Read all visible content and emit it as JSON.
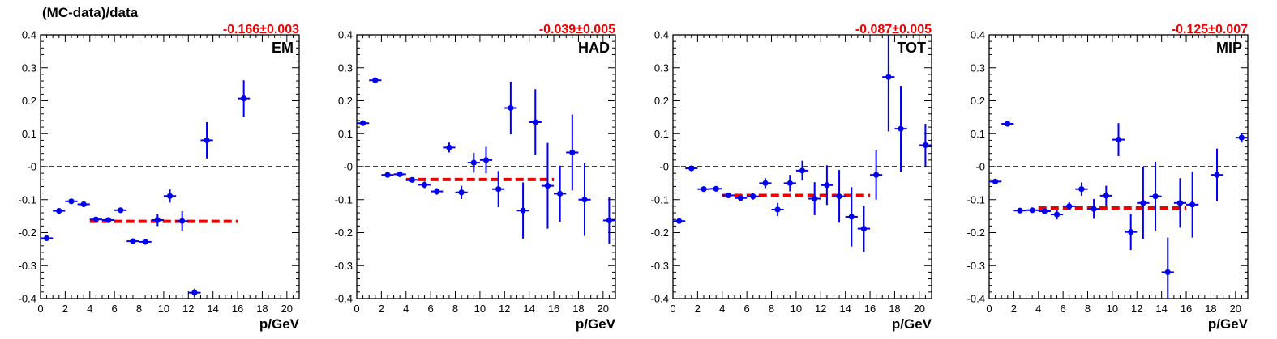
{
  "figure": {
    "ylabel": "(MC-data)/data"
  },
  "colors": {
    "points": "#0000ee",
    "fit": "#ee0000",
    "zero_line": "#000000",
    "frame": "#000000"
  },
  "chart_data": [
    {
      "type": "scatter",
      "label": "EM",
      "fit_text": "-0.166±0.003",
      "fit": {
        "value": -0.166,
        "x_range": [
          4,
          16
        ]
      },
      "xlabel": "p/GeV",
      "ylabel": "(MC-data)/data",
      "xlim": [
        0,
        21
      ],
      "ylim": [
        -0.4,
        0.4
      ],
      "xticks": [
        0,
        2,
        4,
        6,
        8,
        10,
        12,
        14,
        16,
        18,
        20
      ],
      "yticks": [
        -0.4,
        -0.3,
        -0.2,
        -0.1,
        0,
        0.1,
        0.2,
        0.3,
        0.4
      ],
      "ytick_labels": [
        "-0.4",
        "-0.3",
        "-0.2",
        "-0.1",
        "-0",
        "0.1",
        "0.2",
        "0.3",
        "0.4"
      ],
      "grid": false,
      "points": [
        {
          "x": 0.5,
          "y": -0.217,
          "err": 0.006
        },
        {
          "x": 1.5,
          "y": -0.134,
          "err": 0.005
        },
        {
          "x": 2.5,
          "y": -0.105,
          "err": 0.004
        },
        {
          "x": 3.5,
          "y": -0.114,
          "err": 0.004
        },
        {
          "x": 4.5,
          "y": -0.16,
          "err": 0.004
        },
        {
          "x": 5.5,
          "y": -0.162,
          "err": 0.004
        },
        {
          "x": 6.5,
          "y": -0.132,
          "err": 0.004
        },
        {
          "x": 7.5,
          "y": -0.226,
          "err": 0.004
        },
        {
          "x": 8.5,
          "y": -0.228,
          "err": 0.006
        },
        {
          "x": 9.5,
          "y": -0.162,
          "err": 0.018
        },
        {
          "x": 10.5,
          "y": -0.089,
          "err": 0.02
        },
        {
          "x": 11.5,
          "y": -0.165,
          "err": 0.03
        },
        {
          "x": 12.5,
          "y": -0.382,
          "err": 0.012
        },
        {
          "x": 13.5,
          "y": 0.08,
          "err": 0.055
        },
        {
          "x": 16.5,
          "y": 0.207,
          "err": 0.055
        }
      ]
    },
    {
      "type": "scatter",
      "label": "HAD",
      "fit_text": "-0.039±0.005",
      "fit": {
        "value": -0.039,
        "x_range": [
          4,
          16
        ]
      },
      "xlabel": "p/GeV",
      "xlim": [
        0,
        21
      ],
      "ylim": [
        -0.4,
        0.4
      ],
      "xticks": [
        0,
        2,
        4,
        6,
        8,
        10,
        12,
        14,
        16,
        18,
        20
      ],
      "yticks": [
        -0.4,
        -0.3,
        -0.2,
        -0.1,
        0,
        0.1,
        0.2,
        0.3,
        0.4
      ],
      "ytick_labels": [
        "-0.4",
        "-0.3",
        "-0.2",
        "-0.1",
        "-0",
        "0.1",
        "0.2",
        "0.3",
        "0.4"
      ],
      "grid": false,
      "points": [
        {
          "x": 0.5,
          "y": 0.132,
          "err": 0.006
        },
        {
          "x": 1.5,
          "y": 0.262,
          "err": 0.004
        },
        {
          "x": 2.5,
          "y": -0.025,
          "err": 0.004
        },
        {
          "x": 3.5,
          "y": -0.023,
          "err": 0.004
        },
        {
          "x": 4.5,
          "y": -0.04,
          "err": 0.005
        },
        {
          "x": 5.5,
          "y": -0.055,
          "err": 0.01
        },
        {
          "x": 6.5,
          "y": -0.075,
          "err": 0.01
        },
        {
          "x": 7.5,
          "y": 0.058,
          "err": 0.015
        },
        {
          "x": 8.5,
          "y": -0.078,
          "err": 0.02
        },
        {
          "x": 9.5,
          "y": 0.012,
          "err": 0.03
        },
        {
          "x": 10.5,
          "y": 0.02,
          "err": 0.04
        },
        {
          "x": 11.5,
          "y": -0.068,
          "err": 0.055
        },
        {
          "x": 12.5,
          "y": 0.178,
          "err": 0.08
        },
        {
          "x": 13.5,
          "y": -0.133,
          "err": 0.085
        },
        {
          "x": 14.5,
          "y": 0.135,
          "err": 0.1
        },
        {
          "x": 15.5,
          "y": -0.058,
          "err": 0.13
        },
        {
          "x": 16.5,
          "y": -0.082,
          "err": 0.085
        },
        {
          "x": 17.5,
          "y": 0.043,
          "err": 0.115
        },
        {
          "x": 18.5,
          "y": -0.1,
          "err": 0.11
        },
        {
          "x": 20.5,
          "y": -0.163,
          "err": 0.07
        }
      ]
    },
    {
      "type": "scatter",
      "label": "TOT",
      "fit_text": "-0.087±0.005",
      "fit": {
        "value": -0.087,
        "x_range": [
          4,
          16
        ]
      },
      "xlabel": "p/GeV",
      "xlim": [
        0,
        21
      ],
      "ylim": [
        -0.4,
        0.4
      ],
      "xticks": [
        0,
        2,
        4,
        6,
        8,
        10,
        12,
        14,
        16,
        18,
        20
      ],
      "yticks": [
        -0.4,
        -0.3,
        -0.2,
        -0.1,
        0,
        0.1,
        0.2,
        0.3,
        0.4
      ],
      "ytick_labels": [
        "-0.4",
        "-0.3",
        "-0.2",
        "-0.1",
        "-0",
        "0.1",
        "0.2",
        "0.3",
        "0.4"
      ],
      "grid": false,
      "points": [
        {
          "x": 0.5,
          "y": -0.165,
          "err": 0.008
        },
        {
          "x": 1.5,
          "y": -0.005,
          "err": 0.004
        },
        {
          "x": 2.5,
          "y": -0.068,
          "err": 0.004
        },
        {
          "x": 3.5,
          "y": -0.067,
          "err": 0.004
        },
        {
          "x": 4.5,
          "y": -0.087,
          "err": 0.005
        },
        {
          "x": 5.5,
          "y": -0.095,
          "err": 0.008
        },
        {
          "x": 6.5,
          "y": -0.09,
          "err": 0.01
        },
        {
          "x": 7.5,
          "y": -0.05,
          "err": 0.015
        },
        {
          "x": 8.5,
          "y": -0.13,
          "err": 0.02
        },
        {
          "x": 9.5,
          "y": -0.05,
          "err": 0.025
        },
        {
          "x": 10.5,
          "y": -0.012,
          "err": 0.03
        },
        {
          "x": 11.5,
          "y": -0.097,
          "err": 0.05
        },
        {
          "x": 12.5,
          "y": -0.056,
          "err": 0.06
        },
        {
          "x": 13.5,
          "y": -0.09,
          "err": 0.08
        },
        {
          "x": 14.5,
          "y": -0.152,
          "err": 0.09
        },
        {
          "x": 15.5,
          "y": -0.188,
          "err": 0.07
        },
        {
          "x": 16.5,
          "y": -0.025,
          "err": 0.075
        },
        {
          "x": 17.5,
          "y": 0.272,
          "err": 0.165
        },
        {
          "x": 18.5,
          "y": 0.115,
          "err": 0.13
        },
        {
          "x": 20.5,
          "y": 0.065,
          "err": 0.065
        }
      ]
    },
    {
      "type": "scatter",
      "label": "MIP",
      "fit_text": "-0.125±0.007",
      "fit": {
        "value": -0.125,
        "x_range": [
          4,
          16
        ]
      },
      "xlabel": "p/GeV",
      "xlim": [
        0,
        21
      ],
      "ylim": [
        -0.4,
        0.4
      ],
      "xticks": [
        0,
        2,
        4,
        6,
        8,
        10,
        12,
        14,
        16,
        18,
        20
      ],
      "yticks": [
        -0.4,
        -0.3,
        -0.2,
        -0.1,
        0,
        0.1,
        0.2,
        0.3,
        0.4
      ],
      "ytick_labels": [
        "-0.4",
        "-0.3",
        "-0.2",
        "-0.1",
        "-0",
        "0.1",
        "0.2",
        "0.3",
        "0.4"
      ],
      "grid": false,
      "points": [
        {
          "x": 0.5,
          "y": -0.045,
          "err": 0.005
        },
        {
          "x": 1.5,
          "y": 0.13,
          "err": 0.004
        },
        {
          "x": 2.5,
          "y": -0.133,
          "err": 0.004
        },
        {
          "x": 3.5,
          "y": -0.132,
          "err": 0.004
        },
        {
          "x": 4.5,
          "y": -0.135,
          "err": 0.006
        },
        {
          "x": 5.5,
          "y": -0.145,
          "err": 0.015
        },
        {
          "x": 6.5,
          "y": -0.12,
          "err": 0.012
        },
        {
          "x": 7.5,
          "y": -0.068,
          "err": 0.02
        },
        {
          "x": 8.5,
          "y": -0.128,
          "err": 0.03
        },
        {
          "x": 9.5,
          "y": -0.088,
          "err": 0.03
        },
        {
          "x": 10.5,
          "y": 0.082,
          "err": 0.05
        },
        {
          "x": 11.5,
          "y": -0.198,
          "err": 0.055
        },
        {
          "x": 12.5,
          "y": -0.11,
          "err": 0.11
        },
        {
          "x": 13.5,
          "y": -0.09,
          "err": 0.105
        },
        {
          "x": 14.5,
          "y": -0.32,
          "err": 0.105
        },
        {
          "x": 15.5,
          "y": -0.11,
          "err": 0.075
        },
        {
          "x": 16.5,
          "y": -0.115,
          "err": 0.1
        },
        {
          "x": 18.5,
          "y": -0.025,
          "err": 0.08
        },
        {
          "x": 20.5,
          "y": 0.088,
          "err": 0.015
        }
      ]
    }
  ]
}
